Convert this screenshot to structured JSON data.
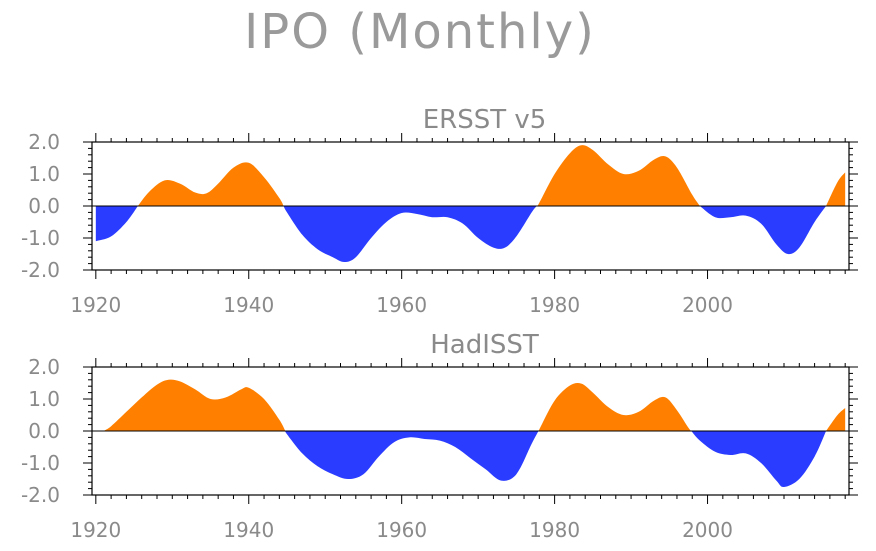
{
  "title": "IPO (Monthly)",
  "chart_data": [
    {
      "type": "area",
      "title": "ERSST v5",
      "xlim": [
        1919.5,
        2018.5
      ],
      "ylim": [
        -2.0,
        2.0
      ],
      "x_ticks": [
        1920,
        1940,
        1960,
        1980,
        2000
      ],
      "y_ticks": [
        2.0,
        1.0,
        0.0,
        -1.0,
        -2.0
      ],
      "y_tick_labels": [
        "2.0",
        "1.0",
        "0.0",
        "-1.0",
        "-2.0"
      ],
      "positive_color": "#ff8000",
      "negative_color": "#2a3cff",
      "x": [
        1920,
        1922,
        1924,
        1925.5,
        1927,
        1929,
        1931,
        1933,
        1934.5,
        1936,
        1938,
        1940,
        1942,
        1944,
        1945,
        1947,
        1949,
        1951,
        1952.5,
        1954,
        1956,
        1958,
        1960,
        1962,
        1964,
        1966,
        1968,
        1970,
        1972,
        1973.5,
        1975,
        1977,
        1978,
        1980,
        1982,
        1983.5,
        1985,
        1987,
        1989,
        1991,
        1993,
        1994.5,
        1996,
        1998,
        1999,
        2001,
        2003,
        2005,
        2007,
        2009,
        2010.5,
        2012,
        2014,
        2015.5,
        2017,
        2018
      ],
      "y": [
        -1.1,
        -0.95,
        -0.5,
        0.0,
        0.45,
        0.8,
        0.7,
        0.42,
        0.4,
        0.7,
        1.2,
        1.35,
        0.9,
        0.25,
        -0.2,
        -0.9,
        -1.35,
        -1.6,
        -1.75,
        -1.6,
        -1.0,
        -0.5,
        -0.22,
        -0.25,
        -0.35,
        -0.35,
        -0.55,
        -1.0,
        -1.3,
        -1.3,
        -0.95,
        -0.2,
        0.1,
        1.0,
        1.65,
        1.9,
        1.75,
        1.3,
        1.0,
        1.1,
        1.45,
        1.55,
        1.2,
        0.35,
        0.0,
        -0.35,
        -0.35,
        -0.3,
        -0.55,
        -1.2,
        -1.5,
        -1.3,
        -0.5,
        0.0,
        0.75,
        1.05
      ]
    },
    {
      "type": "area",
      "title": "HadISST",
      "xlim": [
        1919.5,
        2018.5
      ],
      "ylim": [
        -2.0,
        2.0
      ],
      "x_ticks": [
        1920,
        1940,
        1960,
        1980,
        2000
      ],
      "y_ticks": [
        2.0,
        1.0,
        0.0,
        -1.0,
        -2.0
      ],
      "y_tick_labels": [
        "2.0",
        "1.0",
        "0.0",
        "-1.0",
        "-2.0"
      ],
      "positive_color": "#ff8000",
      "negative_color": "#2a3cff",
      "x": [
        1920,
        1921,
        1922,
        1924,
        1926,
        1928,
        1929.5,
        1931,
        1933,
        1935,
        1937,
        1939,
        1940,
        1942,
        1944,
        1945,
        1947,
        1949,
        1951,
        1953,
        1955,
        1957,
        1959,
        1961,
        1963,
        1965,
        1967,
        1969,
        1971,
        1973,
        1975,
        1977,
        1978,
        1980,
        1982,
        1983.5,
        1985,
        1987,
        1989,
        1991,
        1993,
        1994.5,
        1996,
        1997.5,
        1999,
        2001,
        2003,
        2005,
        2007,
        2009,
        2010,
        2012,
        2014,
        2015.5,
        2017,
        2018
      ],
      "y": [
        0.0,
        0.0,
        0.15,
        0.6,
        1.05,
        1.45,
        1.6,
        1.55,
        1.3,
        1.0,
        1.05,
        1.3,
        1.35,
        1.0,
        0.35,
        -0.1,
        -0.7,
        -1.1,
        -1.35,
        -1.5,
        -1.35,
        -0.8,
        -0.35,
        -0.2,
        -0.25,
        -0.3,
        -0.5,
        -0.85,
        -1.2,
        -1.55,
        -1.35,
        -0.4,
        0.05,
        0.95,
        1.42,
        1.48,
        1.2,
        0.75,
        0.5,
        0.6,
        0.95,
        1.05,
        0.65,
        0.1,
        -0.3,
        -0.65,
        -0.75,
        -0.7,
        -1.0,
        -1.55,
        -1.75,
        -1.5,
        -0.8,
        0.0,
        0.5,
        0.72
      ]
    }
  ]
}
